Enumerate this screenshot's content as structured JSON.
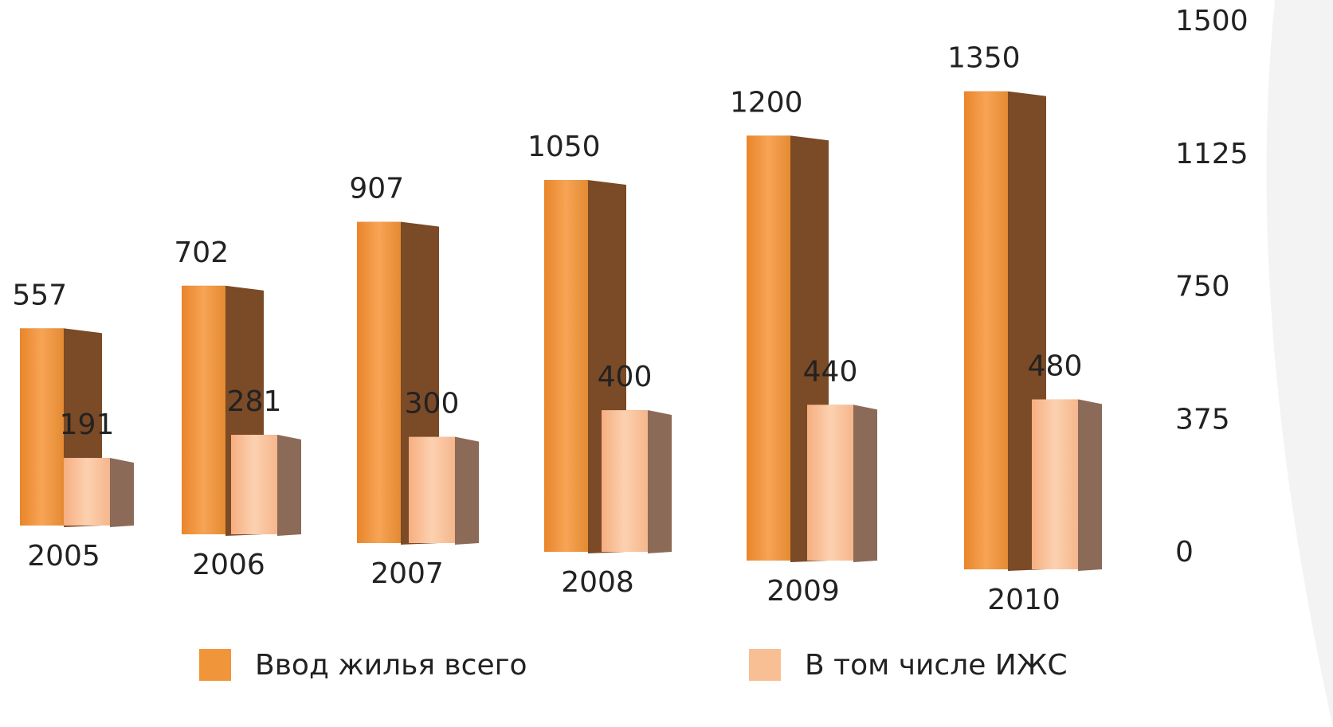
{
  "chart_data": {
    "type": "bar",
    "categories": [
      "2005",
      "2006",
      "2007",
      "2008",
      "2009",
      "2010"
    ],
    "series": [
      {
        "name": "Ввод жилья всего",
        "color": "#f0953a",
        "values": [
          557,
          702,
          907,
          1050,
          1200,
          1350
        ]
      },
      {
        "name": "В том числе ИЖС",
        "color": "#f9bf94",
        "values": [
          191,
          281,
          300,
          400,
          440,
          480
        ]
      }
    ],
    "ylim": [
      0,
      1500
    ],
    "yticks": [
      0,
      375,
      750,
      1125,
      1500
    ]
  }
}
